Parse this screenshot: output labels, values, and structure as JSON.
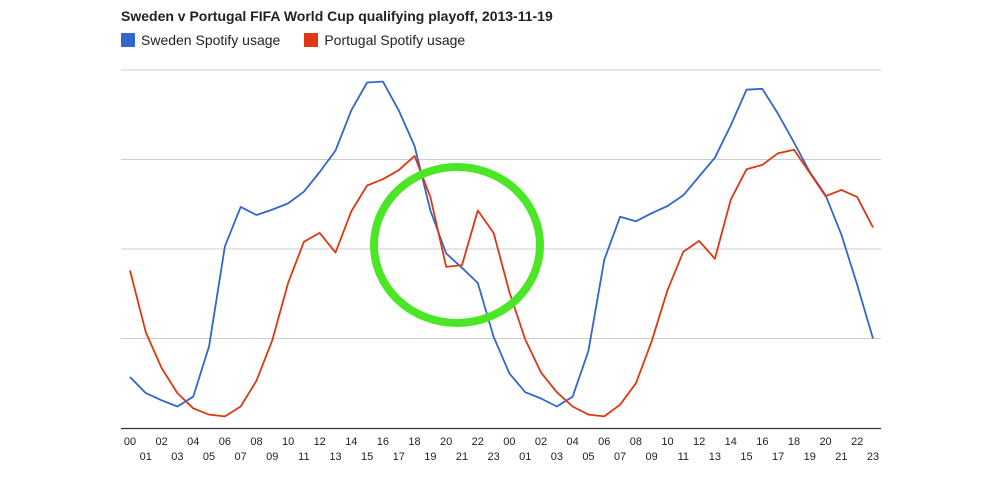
{
  "chart_data": {
    "type": "line",
    "title": "Sweden v Portugal FIFA World Cup qualifying playoff, 2013-11-19",
    "x": [
      "00",
      "01",
      "02",
      "03",
      "04",
      "05",
      "06",
      "07",
      "08",
      "09",
      "10",
      "11",
      "12",
      "13",
      "14",
      "15",
      "16",
      "17",
      "18",
      "19",
      "20",
      "21",
      "22",
      "23",
      "00",
      "01",
      "02",
      "03",
      "04",
      "05",
      "06",
      "07",
      "08",
      "09",
      "10",
      "11",
      "12",
      "13",
      "14",
      "15",
      "16",
      "17",
      "18",
      "19",
      "20",
      "21",
      "22",
      "23"
    ],
    "ylim": [
      0,
      4
    ],
    "grid": true,
    "legend": "top-left",
    "series": [
      {
        "name": "Sweden Spotify usage",
        "color": "#3366cc",
        "values": [
          0.57,
          0.39,
          0.31,
          0.24,
          0.35,
          0.91,
          2.03,
          2.47,
          2.38,
          2.44,
          2.51,
          2.64,
          2.86,
          3.1,
          3.55,
          3.86,
          3.87,
          3.55,
          3.15,
          2.43,
          1.95,
          1.79,
          1.62,
          1.02,
          0.61,
          0.4,
          0.33,
          0.24,
          0.35,
          0.86,
          1.88,
          2.36,
          2.31,
          2.4,
          2.48,
          2.6,
          2.81,
          3.02,
          3.38,
          3.78,
          3.79,
          3.51,
          3.19,
          2.86,
          2.6,
          2.16,
          1.6,
          1.0
        ]
      },
      {
        "name": "Portugal Spotify usage",
        "color": "#dc3912",
        "values": [
          1.76,
          1.07,
          0.67,
          0.39,
          0.22,
          0.15,
          0.13,
          0.24,
          0.53,
          0.98,
          1.62,
          2.08,
          2.18,
          1.96,
          2.42,
          2.71,
          2.78,
          2.88,
          3.04,
          2.58,
          1.8,
          1.82,
          2.43,
          2.18,
          1.52,
          0.99,
          0.62,
          0.4,
          0.24,
          0.15,
          0.13,
          0.26,
          0.5,
          0.97,
          1.54,
          1.97,
          2.09,
          1.89,
          2.55,
          2.89,
          2.94,
          3.07,
          3.11,
          2.85,
          2.59,
          2.66,
          2.58,
          2.24
        ]
      }
    ]
  },
  "annotation": {
    "shape": "circle",
    "color": "#4be626"
  }
}
